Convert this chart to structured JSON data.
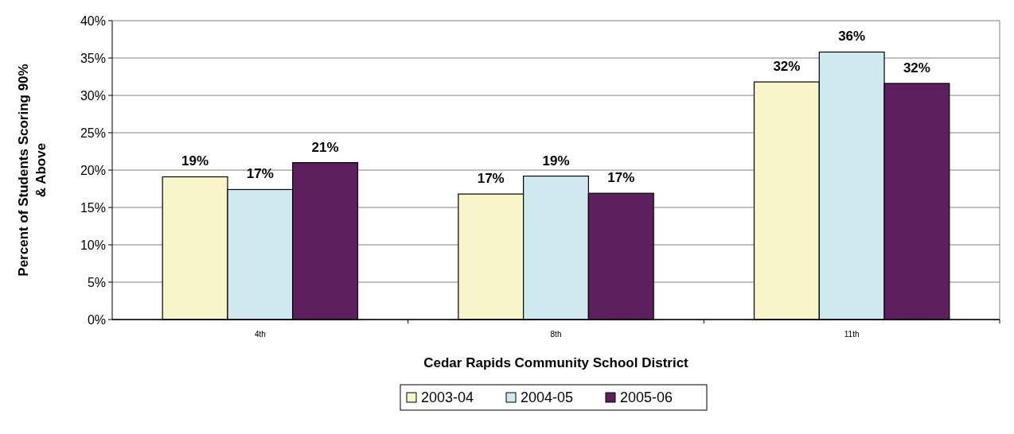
{
  "chart_data": {
    "type": "bar",
    "xlabel": "Cedar Rapids Community School District",
    "ylabel": "Percent of Students Scoring 90% & Above",
    "categories": [
      "4th",
      "8th",
      "11th"
    ],
    "series": [
      {
        "name": "2003-04",
        "color": "#f8f5c8",
        "values": [
          19.1,
          16.8,
          31.8
        ],
        "value_labels": [
          "19%",
          "17%",
          "32%"
        ]
      },
      {
        "name": "2004-05",
        "color": "#cfeaee",
        "values": [
          17.4,
          19.2,
          35.8
        ],
        "value_labels": [
          "17%",
          "19%",
          "36%"
        ]
      },
      {
        "name": "2005-06",
        "color": "#5e1f5e",
        "values": [
          21.0,
          16.9,
          31.6
        ],
        "value_labels": [
          "21%",
          "17%",
          "32%"
        ]
      }
    ],
    "ylim": [
      0,
      40
    ],
    "yticks": [
      {
        "value": 0,
        "label": "0%"
      },
      {
        "value": 5,
        "label": "5%"
      },
      {
        "value": 10,
        "label": "10%"
      },
      {
        "value": 15,
        "label": "15%"
      },
      {
        "value": 20,
        "label": "20%"
      },
      {
        "value": 25,
        "label": "25%"
      },
      {
        "value": 30,
        "label": "30%"
      },
      {
        "value": 35,
        "label": "35%"
      },
      {
        "value": 40,
        "label": "40%"
      }
    ],
    "grid": "y",
    "legend": "bottom"
  }
}
